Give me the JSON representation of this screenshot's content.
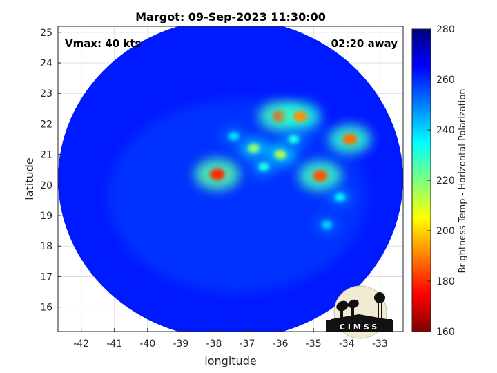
{
  "chart_data": {
    "type": "heatmap",
    "title": "Margot: 09-Sep-2023 11:30:00",
    "annotations": {
      "vmax": "Vmax: 40 kts",
      "away": "02:20 away"
    },
    "xlabel": "longitude",
    "ylabel": "latitude",
    "xlim": [
      -42.7,
      -32.3
    ],
    "ylim": [
      15.2,
      25.2
    ],
    "xticks": [
      -42,
      -41,
      -40,
      -39,
      -38,
      -37,
      -36,
      -35,
      -34,
      -33
    ],
    "yticks": [
      16,
      17,
      18,
      19,
      20,
      21,
      22,
      23,
      24,
      25
    ],
    "grid": true,
    "colorbar": {
      "label": "Brightness Temp - Horizontal Polarization",
      "range": [
        160,
        280
      ],
      "ticks": [
        160,
        180,
        200,
        220,
        240,
        260,
        280
      ],
      "colormap": "jet"
    },
    "swath_center": {
      "lon": -37.5,
      "lat": 20.2
    },
    "background_value": 262,
    "features": [
      {
        "lon": -37.9,
        "lat": 20.35,
        "value": 180
      },
      {
        "lon": -34.8,
        "lat": 20.3,
        "value": 185
      },
      {
        "lon": -36.0,
        "lat": 22.25,
        "value": 185
      },
      {
        "lon": -35.4,
        "lat": 22.25,
        "value": 192
      },
      {
        "lon": -33.9,
        "lat": 21.5,
        "value": 188
      },
      {
        "lon": -36.8,
        "lat": 21.2,
        "value": 218
      },
      {
        "lon": -36.0,
        "lat": 21.0,
        "value": 214
      },
      {
        "lon": -36.5,
        "lat": 20.6,
        "value": 232
      },
      {
        "lon": -37.4,
        "lat": 21.6,
        "value": 238
      },
      {
        "lon": -35.6,
        "lat": 21.5,
        "value": 232
      },
      {
        "lon": -34.2,
        "lat": 19.6,
        "value": 236
      },
      {
        "lon": -34.6,
        "lat": 18.7,
        "value": 240
      }
    ],
    "logo": "CIMSS"
  }
}
